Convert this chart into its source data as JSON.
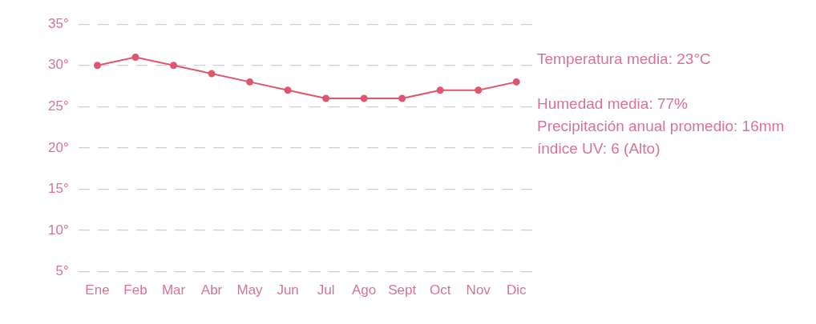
{
  "chart_data": {
    "type": "line",
    "categories": [
      "Ene",
      "Feb",
      "Mar",
      "Abr",
      "May",
      "Jun",
      "Jul",
      "Ago",
      "Sept",
      "Oct",
      "Nov",
      "Dic"
    ],
    "series": [
      {
        "color": "#e0556f",
        "values": [
          30,
          31,
          30,
          29,
          28,
          27,
          26,
          26,
          26,
          27,
          27,
          28
        ]
      }
    ],
    "ylim": [
      5,
      35
    ],
    "yticks": [
      {
        "value": 5,
        "label": "5°"
      },
      {
        "value": 10,
        "label": "10°"
      },
      {
        "value": 15,
        "label": "15°"
      },
      {
        "value": 20,
        "label": "20°"
      },
      {
        "value": 25,
        "label": "25°"
      },
      {
        "value": 30,
        "label": "30°"
      },
      {
        "value": 35,
        "label": "35°"
      }
    ],
    "grid": "y",
    "marker": "circle",
    "line_style": "solid",
    "legend": false,
    "annotations": [
      "Temperatura media: 23°C",
      "Humedad media: 77%",
      "Precipitación anual promedio: 16mm",
      "índice UV: 6 (Alto)"
    ]
  }
}
